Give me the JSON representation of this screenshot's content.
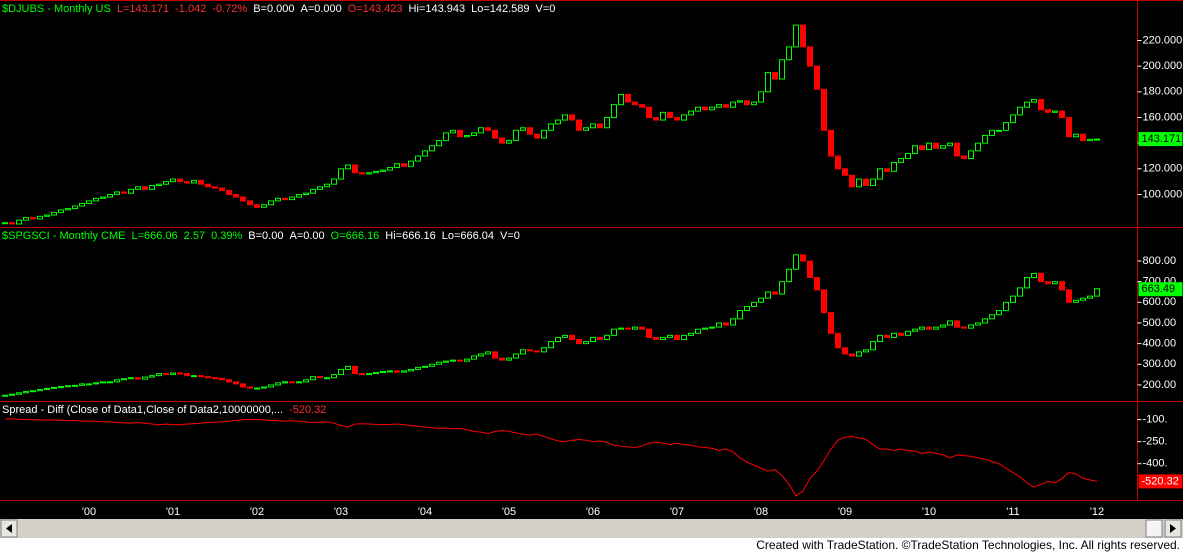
{
  "chart_data": [
    {
      "type": "candlestick",
      "title": "$DJUBS - Monthly  US",
      "title_color": "#00ff00",
      "quote": [
        "L=143.171",
        "-1.042",
        "-0.72%",
        "B=0.000",
        "A=0.000",
        "O=143.423",
        "Hi=143.943",
        "Lo=142.589",
        "V=0"
      ],
      "quote_colors": [
        "#ff3030",
        "#ff3030",
        "#ff3030",
        "#ffffff",
        "#ffffff",
        "#ff3030",
        "#ffffff",
        "#ffffff",
        "#ffffff"
      ],
      "values": [
        78,
        77,
        80,
        82,
        81,
        83,
        84,
        86,
        88,
        89,
        91,
        93,
        95,
        97,
        98,
        100,
        102,
        101,
        104,
        106,
        104,
        107,
        108,
        110,
        112,
        110,
        109,
        111,
        108,
        106,
        105,
        103,
        100,
        98,
        95,
        92,
        90,
        92,
        95,
        97,
        96,
        98,
        100,
        101,
        104,
        106,
        108,
        112,
        120,
        123,
        117,
        116,
        117,
        118,
        119,
        121,
        124,
        122,
        126,
        130,
        134,
        138,
        142,
        148,
        150,
        145,
        146,
        148,
        152,
        150,
        144,
        140,
        142,
        150,
        152,
        147,
        144,
        150,
        155,
        158,
        162,
        158,
        150,
        152,
        155,
        152,
        160,
        170,
        178,
        172,
        170,
        168,
        160,
        158,
        164,
        160,
        158,
        162,
        165,
        168,
        166,
        168,
        170,
        168,
        172,
        173,
        170,
        172,
        180,
        195,
        190,
        205,
        215,
        232,
        215,
        200,
        182,
        150,
        130,
        120,
        115,
        106,
        112,
        107,
        112,
        120,
        118,
        125,
        128,
        132,
        138,
        135,
        140,
        136,
        138,
        140,
        130,
        128,
        134,
        140,
        146,
        150,
        150,
        156,
        162,
        168,
        172,
        174,
        166,
        164,
        165,
        160,
        145,
        147,
        142,
        143,
        143.171
      ],
      "up_color": "#00ff00",
      "down_color": "#ff0000",
      "last_price": 143.171,
      "last_color": "#00ff00",
      "ylim": [
        77,
        250
      ],
      "yticks": [
        {
          "value": 100,
          "label": "100.000"
        },
        {
          "value": 120,
          "label": "120.000"
        },
        {
          "value": 140,
          "label": "140.000"
        },
        {
          "value": 160,
          "label": "160.000"
        },
        {
          "value": 180,
          "label": "180.000"
        },
        {
          "value": 200,
          "label": "200.000"
        },
        {
          "value": 220,
          "label": "220.000"
        }
      ]
    },
    {
      "type": "candlestick",
      "title": "$SPGSCI - Monthly  CME",
      "title_color": "#00ff00",
      "quote": [
        "L=666.06",
        "2.57",
        "0.39%",
        "B=0.00",
        "A=0.00",
        "O=666.16",
        "Hi=666.16",
        "Lo=666.04",
        "V=0"
      ],
      "quote_colors": [
        "#00ff00",
        "#00ff00",
        "#00ff00",
        "#ffffff",
        "#ffffff",
        "#00ff00",
        "#ffffff",
        "#ffffff",
        "#ffffff"
      ],
      "values": [
        150,
        155,
        162,
        168,
        172,
        178,
        183,
        188,
        192,
        196,
        198,
        205,
        205,
        210,
        215,
        215,
        225,
        230,
        235,
        228,
        238,
        245,
        255,
        250,
        258,
        255,
        245,
        245,
        240,
        235,
        232,
        225,
        215,
        205,
        190,
        185,
        185,
        190,
        200,
        210,
        215,
        212,
        215,
        225,
        240,
        235,
        235,
        250,
        275,
        290,
        255,
        250,
        255,
        260,
        265,
        268,
        262,
        268,
        275,
        285,
        290,
        300,
        310,
        315,
        320,
        315,
        325,
        340,
        350,
        360,
        330,
        320,
        330,
        350,
        370,
        365,
        360,
        380,
        410,
        430,
        440,
        420,
        400,
        410,
        430,
        420,
        440,
        470,
        475,
        470,
        480,
        470,
        430,
        420,
        430,
        440,
        420,
        440,
        450,
        470,
        475,
        480,
        500,
        490,
        520,
        560,
        580,
        600,
        620,
        650,
        640,
        700,
        760,
        830,
        800,
        720,
        660,
        550,
        450,
        380,
        350,
        340,
        360,
        370,
        410,
        440,
        430,
        450,
        440,
        460,
        470,
        480,
        470,
        480,
        490,
        510,
        480,
        475,
        490,
        500,
        520,
        540,
        560,
        600,
        630,
        670,
        720,
        740,
        700,
        690,
        700,
        660,
        600,
        610,
        620,
        630,
        666.06
      ],
      "up_color": "#00ff00",
      "down_color": "#ff0000",
      "last_price": 663.49,
      "last_color": "#00ff00",
      "ylim": [
        127,
        955
      ],
      "yticks": [
        {
          "value": 200,
          "label": "200.00"
        },
        {
          "value": 300,
          "label": "300.00"
        },
        {
          "value": 400,
          "label": "400.00"
        },
        {
          "value": 500,
          "label": "500.00"
        },
        {
          "value": 600,
          "label": "600.00"
        },
        {
          "value": 700,
          "label": "700.00"
        },
        {
          "value": 800,
          "label": "800.00"
        }
      ]
    },
    {
      "type": "line",
      "title": "Spread - Diff (Close of Data1,Close of Data2,10000000,...",
      "title_color": "#ffffff",
      "quote": [
        "-520.32"
      ],
      "quote_colors": [
        "#ff3030"
      ],
      "values": [
        -95,
        -95,
        -98,
        -100,
        -100,
        -102,
        -103,
        -103,
        -105,
        -107,
        -105,
        -110,
        -110,
        -112,
        -115,
        -115,
        -120,
        -122,
        -125,
        -120,
        -125,
        -130,
        -135,
        -130,
        -135,
        -135,
        -130,
        -128,
        -125,
        -120,
        -118,
        -115,
        -110,
        -105,
        -100,
        -98,
        -100,
        -102,
        -105,
        -108,
        -110,
        -108,
        -110,
        -115,
        -120,
        -118,
        -115,
        -125,
        -140,
        -150,
        -130,
        -128,
        -130,
        -132,
        -135,
        -133,
        -130,
        -135,
        -140,
        -145,
        -150,
        -155,
        -160,
        -158,
        -162,
        -160,
        -170,
        -180,
        -185,
        -195,
        -180,
        -175,
        -180,
        -190,
        -200,
        -205,
        -200,
        -215,
        -230,
        -245,
        -250,
        -240,
        -235,
        -240,
        -250,
        -245,
        -255,
        -275,
        -280,
        -285,
        -290,
        -280,
        -260,
        -255,
        -260,
        -270,
        -260,
        -270,
        -275,
        -285,
        -290,
        -295,
        -310,
        -300,
        -320,
        -360,
        -390,
        -410,
        -430,
        -450,
        -440,
        -480,
        -540,
        -620,
        -585,
        -500,
        -450,
        -380,
        -300,
        -240,
        -220,
        -215,
        -225,
        -235,
        -270,
        -300,
        -300,
        -310,
        -300,
        -310,
        -315,
        -330,
        -320,
        -330,
        -340,
        -360,
        -340,
        -345,
        -350,
        -360,
        -370,
        -385,
        -400,
        -430,
        -460,
        -490,
        -530,
        -560,
        -540,
        -520,
        -530,
        -500,
        -460,
        -470,
        -500,
        -510,
        -520.32
      ],
      "color": "#ff0000",
      "last_price": -520.32,
      "last_color": "#ff0000",
      "ylim": [
        -640,
        13
      ],
      "yticks": [
        {
          "value": -100,
          "label": "-100."
        },
        {
          "value": -250,
          "label": "-250."
        },
        {
          "value": -400,
          "label": "-400."
        }
      ],
      "categories": [
        null,
        null,
        null,
        null,
        null,
        null,
        null,
        null,
        null,
        null,
        null,
        null,
        "'00",
        null,
        null,
        null,
        null,
        null,
        null,
        null,
        null,
        null,
        null,
        null,
        "'01",
        null,
        null,
        null,
        null,
        null,
        null,
        null,
        null,
        null,
        null,
        null,
        "'02",
        null,
        null,
        null,
        null,
        null,
        null,
        null,
        null,
        null,
        null,
        null,
        "'03",
        null,
        null,
        null,
        null,
        null,
        null,
        null,
        null,
        null,
        null,
        null,
        "'04",
        null,
        null,
        null,
        null,
        null,
        null,
        null,
        null,
        null,
        null,
        null,
        "'05",
        null,
        null,
        null,
        null,
        null,
        null,
        null,
        null,
        null,
        null,
        null,
        "'06",
        null,
        null,
        null,
        null,
        null,
        null,
        null,
        null,
        null,
        null,
        null,
        "'07",
        null,
        null,
        null,
        null,
        null,
        null,
        null,
        null,
        null,
        null,
        null,
        "'08",
        null,
        null,
        null,
        null,
        null,
        null,
        null,
        null,
        null,
        null,
        null,
        "'09",
        null,
        null,
        null,
        null,
        null,
        null,
        null,
        null,
        null,
        null,
        null,
        "'10",
        null,
        null,
        null,
        null,
        null,
        null,
        null,
        null,
        null,
        null,
        null,
        "'11",
        null,
        null,
        null,
        null,
        null,
        null,
        null,
        null,
        null,
        null,
        null,
        "'12"
      ]
    }
  ],
  "footer": "Created with TradeStation. ©TradeStation Technologies, Inc. All rights reserved."
}
